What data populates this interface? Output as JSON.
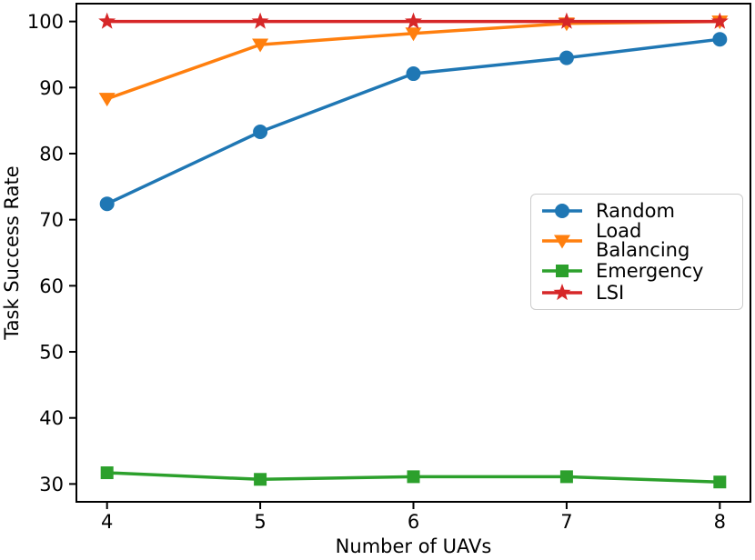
{
  "figure": {
    "background": "#ffffff",
    "axis_color": "#000000",
    "legend_border_color": "#cccccc"
  },
  "chart_data": {
    "type": "line",
    "title": "",
    "xlabel": "Number of UAVs",
    "ylabel": "Task Success Rate",
    "x": [
      4,
      5,
      6,
      7,
      8
    ],
    "xtick_labels": [
      "4",
      "5",
      "6",
      "7",
      "8"
    ],
    "yticks": [
      30,
      40,
      50,
      60,
      70,
      80,
      90,
      100
    ],
    "ytick_labels": [
      "30",
      "40",
      "50",
      "60",
      "70",
      "80",
      "90",
      "100"
    ],
    "xlim": [
      3.8,
      8.2
    ],
    "ylim": [
      27.3,
      102.7
    ],
    "grid": false,
    "legend_position": "center-right",
    "series": [
      {
        "name": "Random",
        "color": "#1f77b4",
        "marker": "circle",
        "values": [
          72.4,
          83.3,
          92.1,
          94.5,
          97.3
        ]
      },
      {
        "name": "Load Balancing",
        "color": "#ff7f0e",
        "marker": "triangle-down",
        "values": [
          88.3,
          96.5,
          98.2,
          99.7,
          100.0
        ]
      },
      {
        "name": "Emergency",
        "color": "#2ca02c",
        "marker": "square",
        "values": [
          31.7,
          30.7,
          31.1,
          31.1,
          30.3
        ]
      },
      {
        "name": "LSI",
        "color": "#d62728",
        "marker": "star",
        "values": [
          100.0,
          100.0,
          100.0,
          100.0,
          100.0
        ]
      }
    ]
  }
}
